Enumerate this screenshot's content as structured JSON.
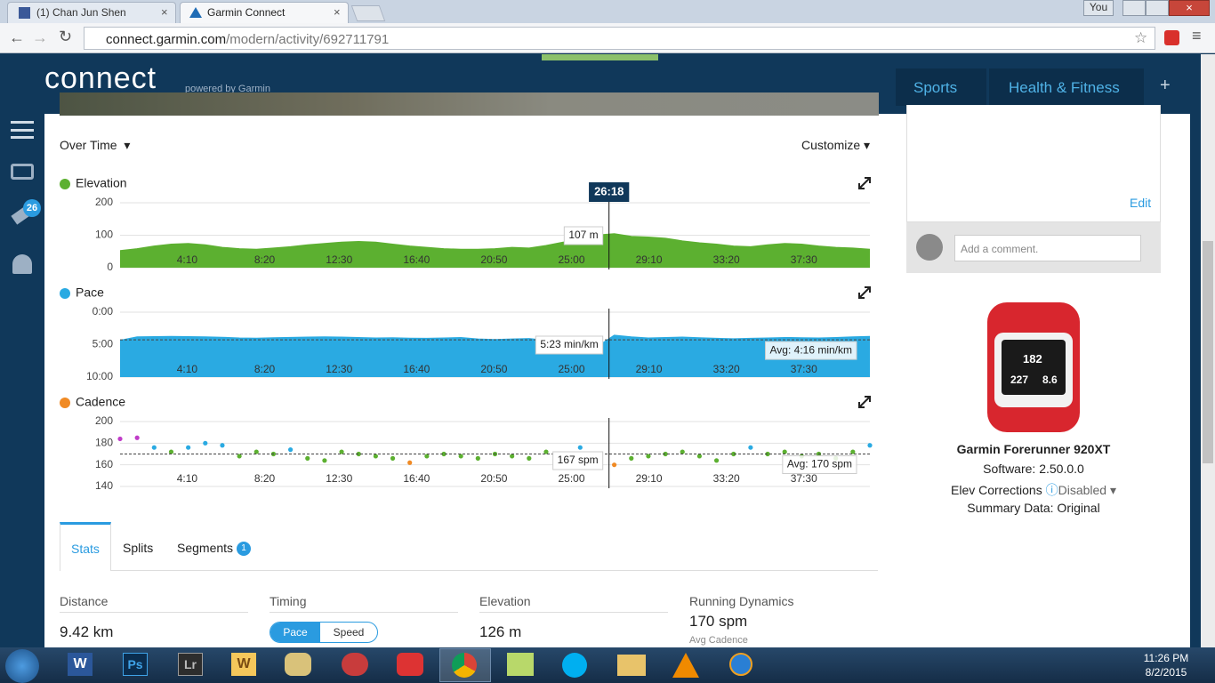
{
  "browser": {
    "tabs": [
      "(1) Chan Jun Shen",
      "Garmin Connect"
    ],
    "user": "You",
    "url_host": "connect.garmin.com",
    "url_path": "/modern/activity/692711791"
  },
  "header": {
    "logo": "connect",
    "tagline": "powered by Garmin",
    "nav": [
      "Sports",
      "Health & Fitness"
    ]
  },
  "sidebar": {
    "badge": "26"
  },
  "chart_controls": {
    "view": "Over Time",
    "customize": "Customize"
  },
  "chart_data": [
    {
      "type": "area",
      "title": "Elevation",
      "color": "#5cb030",
      "x": [
        0,
        55,
        110,
        165,
        220,
        275,
        330,
        385,
        440,
        495,
        550,
        605,
        660,
        715,
        770,
        825,
        880,
        935,
        990,
        1045,
        1100,
        1155,
        1210,
        1265,
        1320,
        1375,
        1430,
        1485,
        1540,
        1595,
        1650,
        1705,
        1760,
        1815,
        1870,
        1925,
        1980,
        2035,
        2090,
        2145,
        2200,
        2255,
        2310,
        2365,
        2420
      ],
      "values": [
        52,
        58,
        66,
        72,
        74,
        70,
        62,
        58,
        56,
        60,
        64,
        70,
        74,
        78,
        80,
        78,
        72,
        66,
        62,
        58,
        56,
        56,
        58,
        62,
        60,
        68,
        78,
        86,
        100,
        104,
        96,
        94,
        90,
        82,
        76,
        72,
        66,
        64,
        70,
        74,
        72,
        66,
        62,
        60,
        56
      ],
      "xlim": [
        0,
        2420
      ],
      "xticks": [
        {
          "value": 250,
          "label": "4:10"
        },
        {
          "value": 500,
          "label": "8:20"
        },
        {
          "value": 750,
          "label": "12:30"
        },
        {
          "value": 1000,
          "label": "16:40"
        },
        {
          "value": 1250,
          "label": "20:50"
        },
        {
          "value": 1500,
          "label": "25:00"
        },
        {
          "value": 1750,
          "label": "29:10"
        },
        {
          "value": 2000,
          "label": "33:20"
        },
        {
          "value": 2250,
          "label": "37:30"
        }
      ],
      "ylim": [
        0,
        200
      ],
      "yticks": [
        0,
        100,
        200
      ],
      "cursor": {
        "value": 1578,
        "label": "26:18"
      },
      "tooltip": "107 m"
    },
    {
      "type": "area",
      "title": "Pace",
      "color": "#2aaae2",
      "inverted": true,
      "x": [
        0,
        55,
        110,
        165,
        220,
        275,
        330,
        385,
        440,
        495,
        550,
        605,
        660,
        715,
        770,
        825,
        880,
        935,
        990,
        1045,
        1100,
        1155,
        1210,
        1265,
        1320,
        1375,
        1430,
        1485,
        1540,
        1595,
        1650,
        1705,
        1760,
        1815,
        1870,
        1925,
        1980,
        2035,
        2090,
        2145,
        2200,
        2255,
        2310,
        2365,
        2420
      ],
      "values": [
        262,
        230,
        228,
        226,
        228,
        230,
        234,
        240,
        242,
        238,
        235,
        232,
        230,
        232,
        236,
        240,
        238,
        242,
        244,
        240,
        236,
        250,
        255,
        250,
        246,
        262,
        280,
        300,
        320,
        215,
        230,
        240,
        236,
        232,
        238,
        244,
        248,
        244,
        240,
        236,
        238,
        240,
        236,
        230,
        226
      ],
      "xlim": [
        0,
        2420
      ],
      "xticks": [
        {
          "value": 250,
          "label": "4:10"
        },
        {
          "value": 500,
          "label": "8:20"
        },
        {
          "value": 750,
          "label": "12:30"
        },
        {
          "value": 1000,
          "label": "16:40"
        },
        {
          "value": 1250,
          "label": "20:50"
        },
        {
          "value": 1500,
          "label": "25:00"
        },
        {
          "value": 1750,
          "label": "29:10"
        },
        {
          "value": 2000,
          "label": "33:20"
        },
        {
          "value": 2250,
          "label": "37:30"
        }
      ],
      "ylim": [
        0,
        600
      ],
      "yticks": [
        {
          "value": 0,
          "label": "0:00"
        },
        {
          "value": 300,
          "label": "5:00"
        },
        {
          "value": 600,
          "label": "10:00"
        }
      ],
      "avg": {
        "value": 256,
        "label": "Avg: 4:16 min/km"
      },
      "tooltip": "5:23 min/km"
    },
    {
      "type": "scatter",
      "title": "Cadence",
      "color": "#f08a24",
      "x": [
        0,
        55,
        110,
        165,
        220,
        275,
        330,
        385,
        440,
        495,
        550,
        605,
        660,
        715,
        770,
        825,
        880,
        935,
        990,
        1045,
        1100,
        1155,
        1210,
        1265,
        1320,
        1375,
        1430,
        1485,
        1540,
        1595,
        1650,
        1705,
        1760,
        1815,
        1870,
        1925,
        1980,
        2035,
        2090,
        2145,
        2200,
        2255,
        2310,
        2365,
        2420
      ],
      "values": [
        184,
        185,
        176,
        172,
        176,
        180,
        178,
        168,
        172,
        170,
        174,
        166,
        164,
        172,
        170,
        168,
        166,
        162,
        168,
        170,
        168,
        166,
        170,
        168,
        166,
        172,
        170,
        176,
        170,
        160,
        166,
        168,
        170,
        172,
        168,
        164,
        170,
        176,
        170,
        172,
        168,
        170,
        166,
        172,
        178
      ],
      "point_colors": [
        "#c03cc8",
        "#c03cc8",
        "#2aaae2",
        "#5cb030",
        "#2aaae2",
        "#2aaae2",
        "#2aaae2",
        "#5cb030",
        "#5cb030",
        "#5cb030",
        "#2aaae2",
        "#5cb030",
        "#5cb030",
        "#5cb030",
        "#5cb030",
        "#5cb030",
        "#5cb030",
        "#f08a24",
        "#5cb030",
        "#5cb030",
        "#5cb030",
        "#5cb030",
        "#5cb030",
        "#5cb030",
        "#5cb030",
        "#5cb030",
        "#5cb030",
        "#2aaae2",
        "#5cb030",
        "#f08a24",
        "#5cb030",
        "#5cb030",
        "#5cb030",
        "#5cb030",
        "#5cb030",
        "#5cb030",
        "#5cb030",
        "#2aaae2",
        "#5cb030",
        "#5cb030",
        "#5cb030",
        "#5cb030",
        "#5cb030",
        "#5cb030",
        "#2aaae2"
      ],
      "xlim": [
        0,
        2420
      ],
      "xticks": [
        {
          "value": 250,
          "label": "4:10"
        },
        {
          "value": 500,
          "label": "8:20"
        },
        {
          "value": 750,
          "label": "12:30"
        },
        {
          "value": 1000,
          "label": "16:40"
        },
        {
          "value": 1250,
          "label": "20:50"
        },
        {
          "value": 1500,
          "label": "25:00"
        },
        {
          "value": 1750,
          "label": "29:10"
        },
        {
          "value": 2000,
          "label": "33:20"
        },
        {
          "value": 2250,
          "label": "37:30"
        }
      ],
      "ylim": [
        140,
        200
      ],
      "yticks": [
        140,
        160,
        180,
        200
      ],
      "avg": {
        "value": 170,
        "label": "Avg: 170 spm"
      },
      "tooltip": "167 spm"
    }
  ],
  "stats": {
    "tabs": [
      "Stats",
      "Splits",
      "Segments"
    ],
    "segments_badge": "1",
    "columns": [
      {
        "label": "Distance",
        "value": "9.42 km"
      },
      {
        "label": "Timing",
        "toggle": [
          "Pace",
          "Speed"
        ]
      },
      {
        "label": "Elevation",
        "value": "126 m"
      },
      {
        "label": "Running Dynamics",
        "value": "170 spm",
        "sublabel": "Avg Cadence"
      }
    ]
  },
  "side_panel": {
    "edit": "Edit",
    "comment_placeholder": "Add a comment.",
    "device": {
      "screen": [
        "182",
        "227",
        "8.6"
      ],
      "name": "Garmin Forerunner 920XT",
      "software": "Software: 2.50.0.0",
      "elev_corrections": "Elev Corrections",
      "elev_value": "Disabled",
      "summary": "Summary Data: Original"
    }
  },
  "taskbar": {
    "apps": [
      "W",
      "Ps",
      "Lr",
      "W"
    ],
    "time": "11:26 PM",
    "date": "8/2/2015"
  }
}
